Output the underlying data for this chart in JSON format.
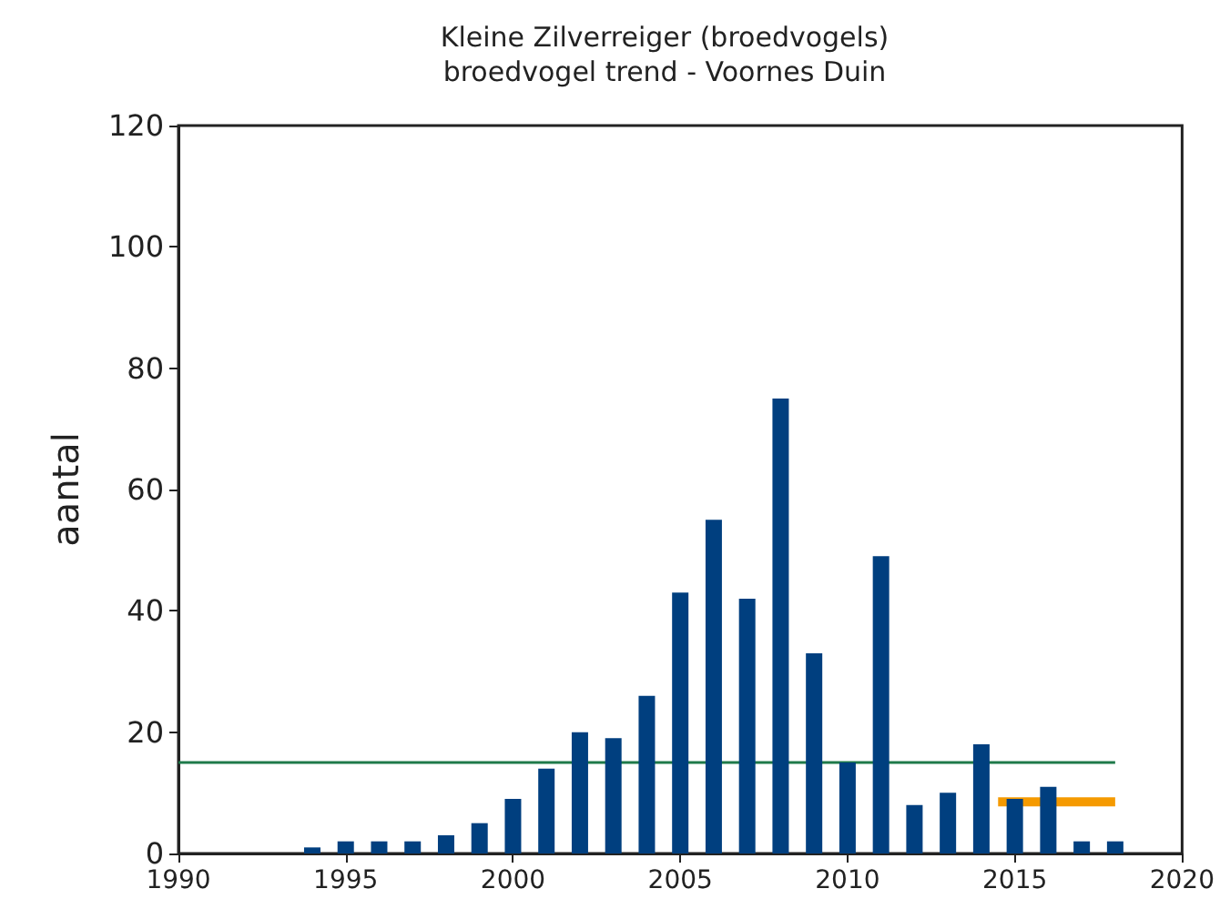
{
  "chart_data": {
    "type": "bar",
    "title": "Kleine Zilverreiger (broedvogels)",
    "subtitle": "broedvogel trend - Voornes Duin",
    "ylabel": "aantal",
    "x": [
      1994,
      1995,
      1996,
      1997,
      1998,
      1999,
      2000,
      2001,
      2002,
      2003,
      2004,
      2005,
      2006,
      2007,
      2008,
      2009,
      2010,
      2011,
      2012,
      2013,
      2014,
      2015,
      2016,
      2017,
      2018
    ],
    "series": [
      {
        "color": "#003f7f",
        "values": [
          1,
          2,
          2,
          2,
          3,
          5,
          9,
          14,
          20,
          19,
          26,
          43,
          55,
          42,
          75,
          33,
          15,
          49,
          8,
          10,
          18,
          9,
          11,
          2,
          2
        ]
      },
      {
        "type": "line",
        "color": "#1f7a4a",
        "x": [
          1990,
          2018
        ],
        "values": [
          15,
          15
        ]
      },
      {
        "type": "line",
        "color": "#f59a00",
        "x": [
          2014.5,
          2018
        ],
        "values": [
          8.5,
          8.5
        ]
      }
    ],
    "xlim": [
      1990,
      2020
    ],
    "xticks": [
      1990,
      1995,
      2000,
      2005,
      2010,
      2015,
      2020
    ],
    "ylim": [
      0,
      120
    ],
    "yticks": [
      0,
      20,
      40,
      60,
      80,
      100,
      120
    ],
    "grid": false,
    "marker": "none"
  }
}
